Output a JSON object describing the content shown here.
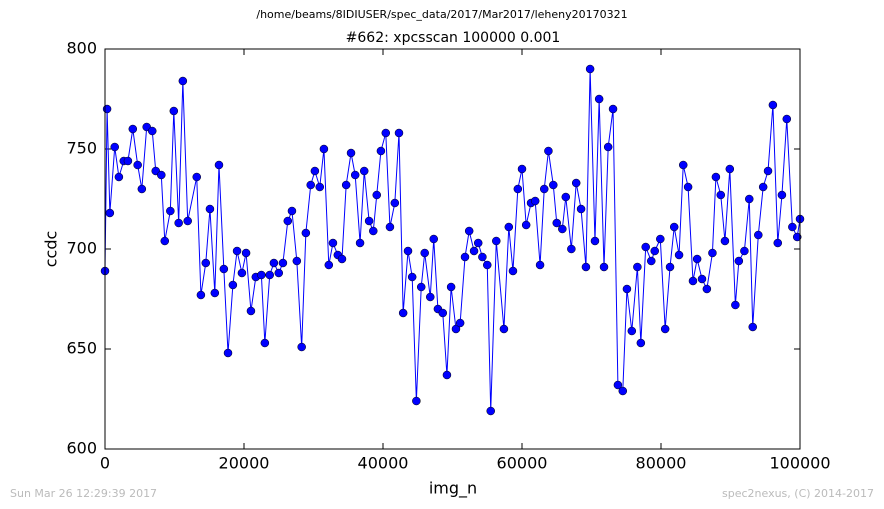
{
  "chart_data": {
    "type": "line",
    "suptitle": "/home/beams/8IDIUSER/spec_data/2017/Mar2017/leheny20170321",
    "title": "#662: xpcsscan 100000 0.001",
    "xlabel": "img_n",
    "ylabel": "ccdc",
    "footer_left": "Sun Mar 26 12:29:39 2017",
    "footer_right": "spec2nexus, (C) 2014-2017",
    "color": "#0000ff",
    "grid": false,
    "xlim": [
      0,
      100000
    ],
    "xticks": [
      0,
      20000,
      40000,
      60000,
      80000,
      100000
    ],
    "ylim": [
      600,
      800
    ],
    "yticks": [
      600,
      650,
      700,
      750,
      800
    ],
    "x": [
      0,
      300,
      700,
      1400,
      2000,
      2700,
      3300,
      4000,
      4700,
      5300,
      6000,
      6800,
      7300,
      8100,
      8600,
      9400,
      9900,
      10600,
      11200,
      11900,
      13200,
      13800,
      14500,
      15100,
      15800,
      16400,
      17100,
      17700,
      18400,
      19000,
      19700,
      20300,
      21000,
      21700,
      22500,
      23000,
      23700,
      24300,
      25000,
      25600,
      26300,
      26900,
      27600,
      28300,
      28900,
      29600,
      30200,
      30900,
      31500,
      32200,
      32800,
      33500,
      34100,
      34700,
      35400,
      36000,
      36700,
      37300,
      38000,
      38600,
      39100,
      39700,
      40400,
      41000,
      41700,
      42300,
      42900,
      43600,
      44200,
      44800,
      45500,
      46000,
      46800,
      47300,
      47900,
      48600,
      49200,
      49800,
      50500,
      51100,
      51800,
      52400,
      53100,
      53700,
      54300,
      55000,
      55500,
      56300,
      57400,
      58100,
      58700,
      59400,
      60000,
      60600,
      61300,
      61900,
      62600,
      63200,
      63800,
      64500,
      65000,
      65800,
      66300,
      67100,
      67800,
      68500,
      69200,
      69800,
      70500,
      71100,
      71800,
      72400,
      73100,
      73800,
      74500,
      75100,
      75800,
      76600,
      77100,
      77800,
      78600,
      79100,
      79900,
      80600,
      81300,
      81900,
      82600,
      83200,
      83900,
      84600,
      85200,
      85900,
      86600,
      87400,
      87900,
      88600,
      89200,
      89900,
      90700,
      91200,
      92000,
      92700,
      93200,
      94000,
      94700,
      95400,
      96100,
      96800,
      97400,
      98100,
      98900,
      99600,
      100000
    ],
    "values": [
      689,
      770,
      718,
      751,
      736,
      744,
      744,
      760,
      742,
      730,
      761,
      759,
      739,
      737,
      704,
      719,
      769,
      713,
      784,
      714,
      736,
      677,
      693,
      720,
      678,
      742,
      690,
      648,
      682,
      699,
      688,
      698,
      669,
      686,
      687,
      653,
      687,
      693,
      688,
      693,
      714,
      719,
      694,
      651,
      708,
      732,
      739,
      731,
      750,
      692,
      703,
      697,
      695,
      732,
      748,
      737,
      703,
      739,
      714,
      709,
      727,
      749,
      758,
      711,
      723,
      758,
      668,
      699,
      686,
      624,
      681,
      698,
      676,
      705,
      670,
      668,
      637,
      681,
      660,
      663,
      696,
      709,
      699,
      703,
      696,
      692,
      619,
      704,
      660,
      711,
      689,
      730,
      740,
      712,
      723,
      724,
      692,
      730,
      749,
      732,
      713,
      710,
      726,
      700,
      733,
      720,
      691,
      790,
      704,
      775,
      691,
      751,
      770,
      632,
      629,
      680,
      659,
      691,
      653,
      701,
      694,
      699,
      705,
      660,
      691,
      711,
      697,
      742,
      731,
      684,
      695,
      685,
      680,
      698,
      736,
      727,
      704,
      740,
      672,
      694,
      699,
      725,
      661,
      707,
      731,
      739,
      772,
      703,
      727,
      765,
      711,
      706,
      715
    ]
  }
}
